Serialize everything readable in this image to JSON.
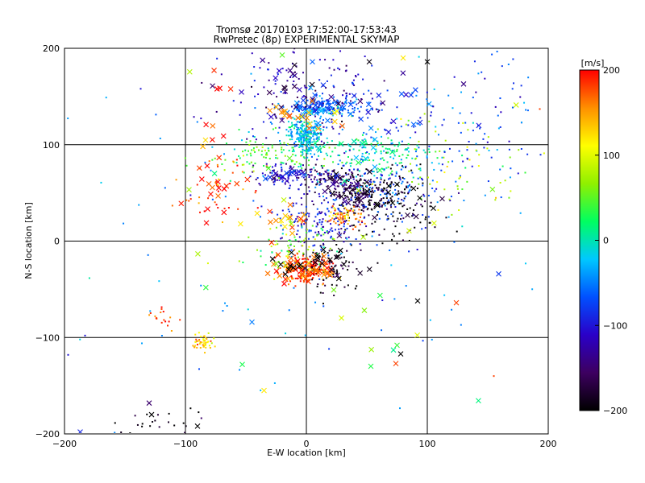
{
  "chart_data": {
    "type": "scatter",
    "title": "Tromsø 20170103 17:52:00-17:53:43",
    "subtitle": "RwPretec (8p) EXPERIMENTAL SKYMAP",
    "xlabel": "E-W location [km]",
    "ylabel": "N-S location [km]",
    "xlim": [
      -200,
      200
    ],
    "ylim": [
      -200,
      200
    ],
    "x_ticks": [
      "-200",
      "-100",
      "0",
      "100",
      "200"
    ],
    "y_ticks": [
      "-200",
      "-100",
      "0",
      "100",
      "200"
    ],
    "grid": true,
    "colorbar": {
      "label": "[m/s]",
      "range": [
        -200,
        200
      ],
      "ticks": [
        "200",
        "100",
        "0",
        "-100",
        "-200"
      ],
      "colors": [
        "#000000",
        "#3d0060",
        "#2a00c8",
        "#0050ff",
        "#00c8ff",
        "#00ff60",
        "#90f000",
        "#ffff00",
        "#ff9000",
        "#ff0000"
      ]
    },
    "clusters": [
      {
        "x": 0,
        "y": 110,
        "sx": 7,
        "sy": 8,
        "v": -20,
        "n": 260,
        "marker": "dot"
      },
      {
        "x": 15,
        "y": 138,
        "sx": 16,
        "sy": 5,
        "v": -60,
        "n": 160,
        "marker": "dot"
      },
      {
        "x": 0,
        "y": -30,
        "sx": 10,
        "sy": 8,
        "v": 175,
        "n": 200,
        "marker": "dot"
      },
      {
        "x": 18,
        "y": -25,
        "sx": 12,
        "sy": 12,
        "v": -190,
        "n": 90,
        "marker": "dot"
      },
      {
        "x": 45,
        "y": 50,
        "sx": 14,
        "sy": 9,
        "v": -175,
        "n": 170,
        "marker": "dot"
      },
      {
        "x": 65,
        "y": 35,
        "sx": 18,
        "sy": 25,
        "v": -200,
        "n": 150,
        "marker": "dot"
      },
      {
        "x": 20,
        "y": 65,
        "sx": 16,
        "sy": 6,
        "v": -150,
        "n": 100,
        "marker": "dot"
      },
      {
        "x": -20,
        "y": 70,
        "sx": 12,
        "sy": 6,
        "v": -110,
        "n": 80,
        "marker": "dot"
      },
      {
        "x": 10,
        "y": 20,
        "sx": 16,
        "sy": 18,
        "v": -100,
        "n": 160,
        "marker": "dot"
      },
      {
        "x": 50,
        "y": 90,
        "sx": 30,
        "sy": 12,
        "v": 10,
        "n": 150,
        "marker": "dot"
      },
      {
        "x": 70,
        "y": 60,
        "sx": 30,
        "sy": 30,
        "v": -70,
        "n": 180,
        "marker": "dot"
      },
      {
        "x": -30,
        "y": 90,
        "sx": 25,
        "sy": 10,
        "v": 40,
        "n": 110,
        "marker": "dot"
      },
      {
        "x": 30,
        "y": 25,
        "sx": 8,
        "sy": 6,
        "v": 150,
        "n": 70,
        "marker": "dot"
      },
      {
        "x": 130,
        "y": 130,
        "sx": 40,
        "sy": 30,
        "v": -70,
        "n": 90,
        "marker": "dot"
      },
      {
        "x": 125,
        "y": 80,
        "sx": 30,
        "sy": 30,
        "v": 80,
        "n": 60,
        "marker": "dot"
      },
      {
        "x": -70,
        "y": 50,
        "sx": 15,
        "sy": 20,
        "v": 180,
        "n": 40,
        "marker": "dot"
      },
      {
        "x": -85,
        "y": -104,
        "sx": 5,
        "sy": 4,
        "v": 130,
        "n": 50,
        "marker": "dot"
      },
      {
        "x": -120,
        "y": -80,
        "sx": 8,
        "sy": 6,
        "v": 190,
        "n": 18,
        "marker": "dot"
      },
      {
        "x": -120,
        "y": -190,
        "sx": 20,
        "sy": 8,
        "v": -200,
        "n": 22,
        "marker": "dot"
      },
      {
        "x": 0,
        "y": 150,
        "sx": 40,
        "sy": 25,
        "v": -120,
        "n": 150,
        "marker": "dot"
      },
      {
        "x": -15,
        "y": -5,
        "sx": 20,
        "sy": 12,
        "v": 60,
        "n": 70,
        "marker": "dot"
      },
      {
        "x": 0,
        "y": 0,
        "sx": 120,
        "sy": 120,
        "v": -40,
        "n": 120,
        "marker": "dot"
      },
      {
        "x": 10,
        "y": 140,
        "sx": 12,
        "sy": 8,
        "v": -60,
        "n": 35,
        "marker": "cross"
      },
      {
        "x": -10,
        "y": 160,
        "sx": 25,
        "sy": 15,
        "v": -150,
        "n": 25,
        "marker": "cross"
      },
      {
        "x": -10,
        "y": 130,
        "sx": 25,
        "sy": 10,
        "v": 150,
        "n": 20,
        "marker": "cross"
      },
      {
        "x": -75,
        "y": 135,
        "sx": 8,
        "sy": 20,
        "v": 185,
        "n": 10,
        "marker": "cross"
      },
      {
        "x": -70,
        "y": 55,
        "sx": 12,
        "sy": 12,
        "v": 185,
        "n": 18,
        "marker": "cross"
      },
      {
        "x": 30,
        "y": 55,
        "sx": 12,
        "sy": 8,
        "v": -160,
        "n": 25,
        "marker": "cross"
      },
      {
        "x": -15,
        "y": 70,
        "sx": 10,
        "sy": 5,
        "v": -110,
        "n": 15,
        "marker": "cross"
      },
      {
        "x": -5,
        "y": -30,
        "sx": 12,
        "sy": 8,
        "v": 175,
        "n": 55,
        "marker": "cross"
      },
      {
        "x": 10,
        "y": -25,
        "sx": 15,
        "sy": 10,
        "v": -200,
        "n": 25,
        "marker": "cross"
      },
      {
        "x": -20,
        "y": 20,
        "sx": 20,
        "sy": 10,
        "v": 150,
        "n": 20,
        "marker": "cross"
      },
      {
        "x": 60,
        "y": 140,
        "sx": 25,
        "sy": 20,
        "v": -90,
        "n": 20,
        "marker": "cross"
      },
      {
        "x": 40,
        "y": 90,
        "sx": 25,
        "sy": 12,
        "v": 0,
        "n": 15,
        "marker": "cross"
      },
      {
        "x": 70,
        "y": 40,
        "sx": 20,
        "sy": 20,
        "v": -190,
        "n": 15,
        "marker": "cross"
      },
      {
        "x": 0,
        "y": 0,
        "sx": 90,
        "sy": 100,
        "v": 60,
        "n": 25,
        "marker": "cross"
      }
    ],
    "points": [
      {
        "x": -130,
        "y": -168,
        "v": -150,
        "marker": "cross"
      },
      {
        "x": -128,
        "y": -180,
        "v": -200,
        "marker": "cross"
      },
      {
        "x": -90,
        "y": -192,
        "v": -200,
        "marker": "cross"
      },
      {
        "x": -187,
        "y": -198,
        "v": -90,
        "marker": "cross"
      },
      {
        "x": -53,
        "y": -128,
        "v": 30,
        "marker": "cross"
      },
      {
        "x": -35,
        "y": -155,
        "v": 120,
        "marker": "cross"
      },
      {
        "x": -45,
        "y": -84,
        "v": -50,
        "marker": "cross"
      },
      {
        "x": 75,
        "y": -108,
        "v": 40,
        "marker": "cross"
      },
      {
        "x": 72,
        "y": -113,
        "v": 10,
        "marker": "cross"
      },
      {
        "x": 78,
        "y": -117,
        "v": -200,
        "marker": "cross"
      },
      {
        "x": 74,
        "y": -127,
        "v": 180,
        "marker": "cross"
      },
      {
        "x": 124,
        "y": -64,
        "v": 180,
        "marker": "cross"
      },
      {
        "x": 159,
        "y": -34,
        "v": -80,
        "marker": "cross"
      },
      {
        "x": 130,
        "y": 163,
        "v": -140,
        "marker": "cross"
      },
      {
        "x": 80,
        "y": 190,
        "v": 120,
        "marker": "cross"
      },
      {
        "x": -20,
        "y": 193,
        "v": 50,
        "marker": "cross"
      },
      {
        "x": 5,
        "y": 186,
        "v": -60,
        "marker": "cross"
      },
      {
        "x": 100,
        "y": 186,
        "v": -200,
        "marker": "cross"
      },
      {
        "x": 92,
        "y": -62,
        "v": -200,
        "marker": "cross"
      },
      {
        "x": -137,
        "y": 158,
        "v": -100,
        "marker": "dot"
      },
      {
        "x": -183,
        "y": -98,
        "v": -100,
        "marker": "dot"
      },
      {
        "x": 155,
        "y": -140,
        "v": 180,
        "marker": "dot"
      },
      {
        "x": 193,
        "y": 137,
        "v": 180,
        "marker": "dot"
      },
      {
        "x": -197,
        "y": -118,
        "v": -100,
        "marker": "dot"
      }
    ]
  }
}
